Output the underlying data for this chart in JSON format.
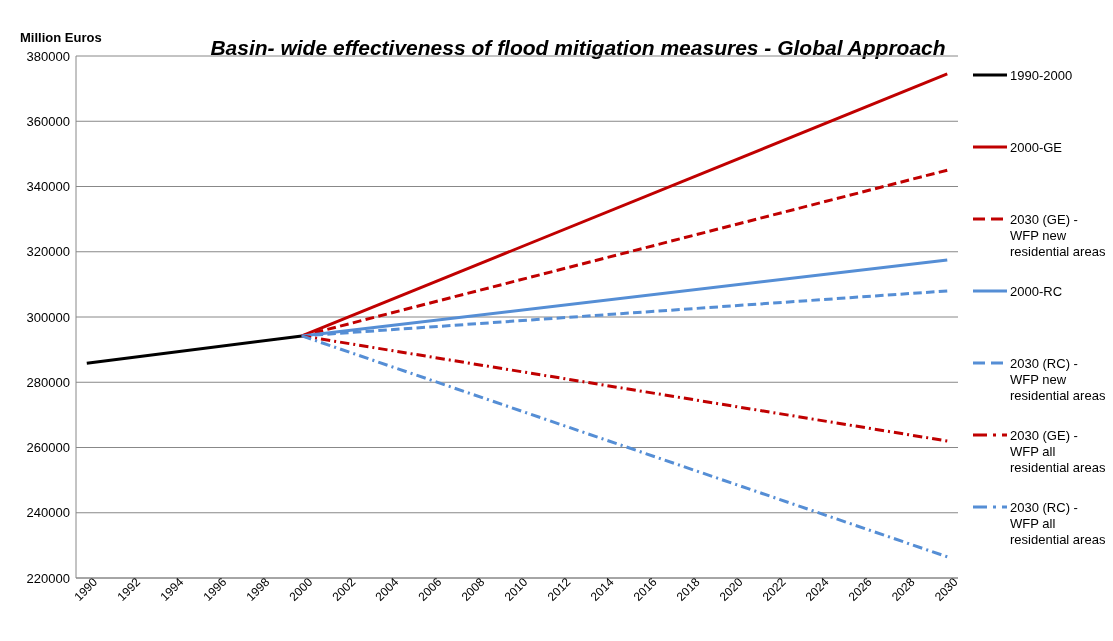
{
  "chart_data": {
    "type": "line",
    "title": "Basin- wide effectiveness of flood mitigation measures - Global Approach",
    "ylabel": "Million Euros",
    "xlim": [
      1989.5,
      2030.5
    ],
    "xticks": [
      1990,
      1992,
      1994,
      1996,
      1998,
      2000,
      2002,
      2004,
      2006,
      2008,
      2010,
      2012,
      2014,
      2016,
      2018,
      2020,
      2022,
      2024,
      2026,
      2028,
      2030
    ],
    "ylim": [
      220000,
      380000
    ],
    "yticks": [
      220000,
      240000,
      260000,
      280000,
      300000,
      320000,
      340000,
      360000,
      380000
    ],
    "grid": "y",
    "legend": "right",
    "marker": "none",
    "series": [
      {
        "name": "1990-2000",
        "color": "#000000",
        "line_style": "solid",
        "x": [
          1990,
          2000
        ],
        "values": [
          285800,
          294200
        ]
      },
      {
        "name": "2000-GE",
        "color": "#c00000",
        "line_style": "solid",
        "x": [
          2000,
          2030
        ],
        "values": [
          294200,
          374500
        ]
      },
      {
        "name": "2030 (GE) - WFP new residential areas",
        "color": "#c00000",
        "line_style": "dashed",
        "x": [
          2000,
          2030
        ],
        "values": [
          294200,
          345000
        ]
      },
      {
        "name": "2000-RC",
        "color": "#558ed5",
        "line_style": "solid",
        "x": [
          2000,
          2030
        ],
        "values": [
          294200,
          317500
        ]
      },
      {
        "name": "2030 (RC) - WFP new residential areas",
        "color": "#558ed5",
        "line_style": "dashed",
        "x": [
          2000,
          2030
        ],
        "values": [
          294200,
          308000
        ]
      },
      {
        "name": "2030 (GE) - WFP all residential areas",
        "color": "#c00000",
        "line_style": "dashdot",
        "x": [
          2000,
          2030
        ],
        "values": [
          294200,
          262000
        ]
      },
      {
        "name": "2030 (RC) - WFP all residential areas",
        "color": "#558ed5",
        "line_style": "dashdot",
        "x": [
          2000,
          2030
        ],
        "values": [
          294200,
          226500
        ]
      }
    ]
  }
}
